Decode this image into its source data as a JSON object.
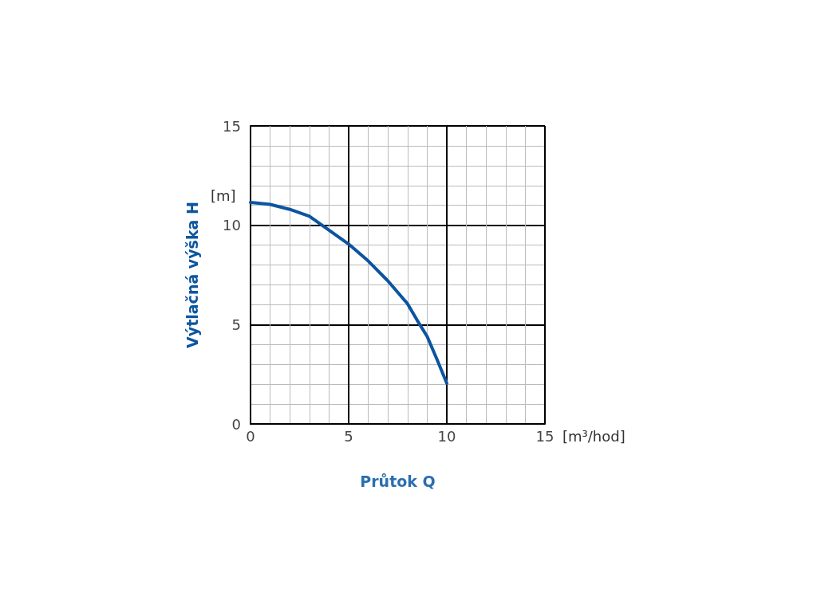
{
  "chart_data": {
    "type": "line",
    "xlabel": "Průtok Q",
    "ylabel": "Výtlačná výška H",
    "annotations": [
      "[m]",
      "[m³/hod]"
    ],
    "x": [
      0,
      1,
      2,
      3,
      3.5,
      5,
      6,
      7,
      8,
      8.5,
      9,
      9.5,
      10
    ],
    "series": [
      {
        "color": "#0b55a0",
        "values": [
          11.15,
          11.05,
          10.8,
          10.45,
          10.1,
          9.05,
          8.2,
          7.2,
          6.05,
          5.2,
          4.4,
          3.25,
          2.05
        ]
      }
    ],
    "xlim": [
      0,
      15
    ],
    "xticks": [
      0,
      5,
      10,
      15
    ],
    "ylim": [
      0,
      15
    ],
    "yticks": [
      0,
      5,
      10,
      15
    ],
    "grid": true,
    "marker": "none",
    "line_style": "solid"
  }
}
